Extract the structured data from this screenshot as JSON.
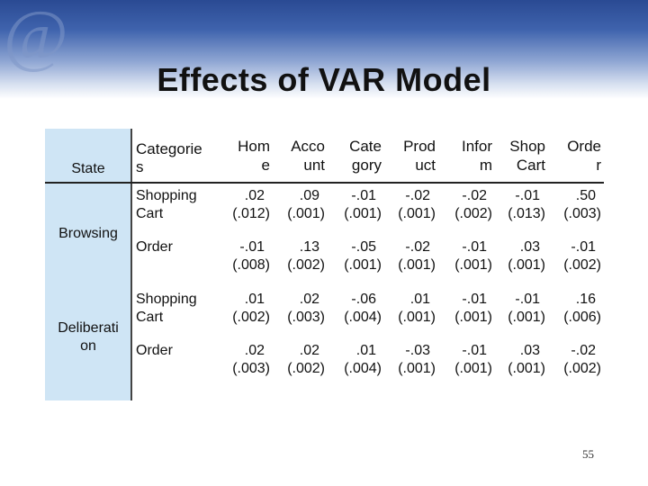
{
  "slide": {
    "title": "Effects of VAR Model",
    "page_number": "55",
    "logo_glyph": "@"
  },
  "table": {
    "header": {
      "state": "State",
      "categories": "Categorie\ns",
      "columns": [
        "Hom\ne",
        "Acco\nunt",
        "Cate\ngory",
        "Prod\nuct",
        "Infor\nm",
        "Shop\nCart",
        "Orde\nr"
      ]
    },
    "groups": [
      {
        "state": "Browsing"
      },
      {
        "state": "Deliberati\non"
      }
    ],
    "rows": [
      {
        "category": "Shopping\nCart",
        "coef": [
          ".02",
          ".09",
          "-.01",
          "-.02",
          "-.02",
          "-.01",
          ".50"
        ],
        "se": [
          "(.012)",
          "(.001)",
          "(.001)",
          "(.001)",
          "(.002)",
          "(.013)",
          "(.003)"
        ]
      },
      {
        "category": "Order",
        "coef": [
          "-.01",
          ".13",
          "-.05",
          "-.02",
          "-.01",
          ".03",
          "-.01"
        ],
        "se": [
          "(.008)",
          "(.002)",
          "(.001)",
          "(.001)",
          "(.001)",
          "(.001)",
          "(.002)"
        ]
      },
      {
        "category": "Shopping\nCart",
        "coef": [
          ".01",
          ".02",
          "-.06",
          ".01",
          "-.01",
          "-.01",
          ".16"
        ],
        "se": [
          "(.002)",
          "(.003)",
          "(.004)",
          "(.001)",
          "(.001)",
          "(.001)",
          "(.006)"
        ]
      },
      {
        "category": "Order",
        "coef": [
          ".02",
          ".02",
          ".01",
          "-.03",
          "-.01",
          ".03",
          "-.02"
        ],
        "se": [
          "(.003)",
          "(.002)",
          "(.004)",
          "(.001)",
          "(.001)",
          "(.001)",
          "(.002)"
        ]
      }
    ]
  },
  "colors": {
    "banner_top": "#2a4a93",
    "state_panel": "#cfe5f5",
    "text": "#111111"
  }
}
